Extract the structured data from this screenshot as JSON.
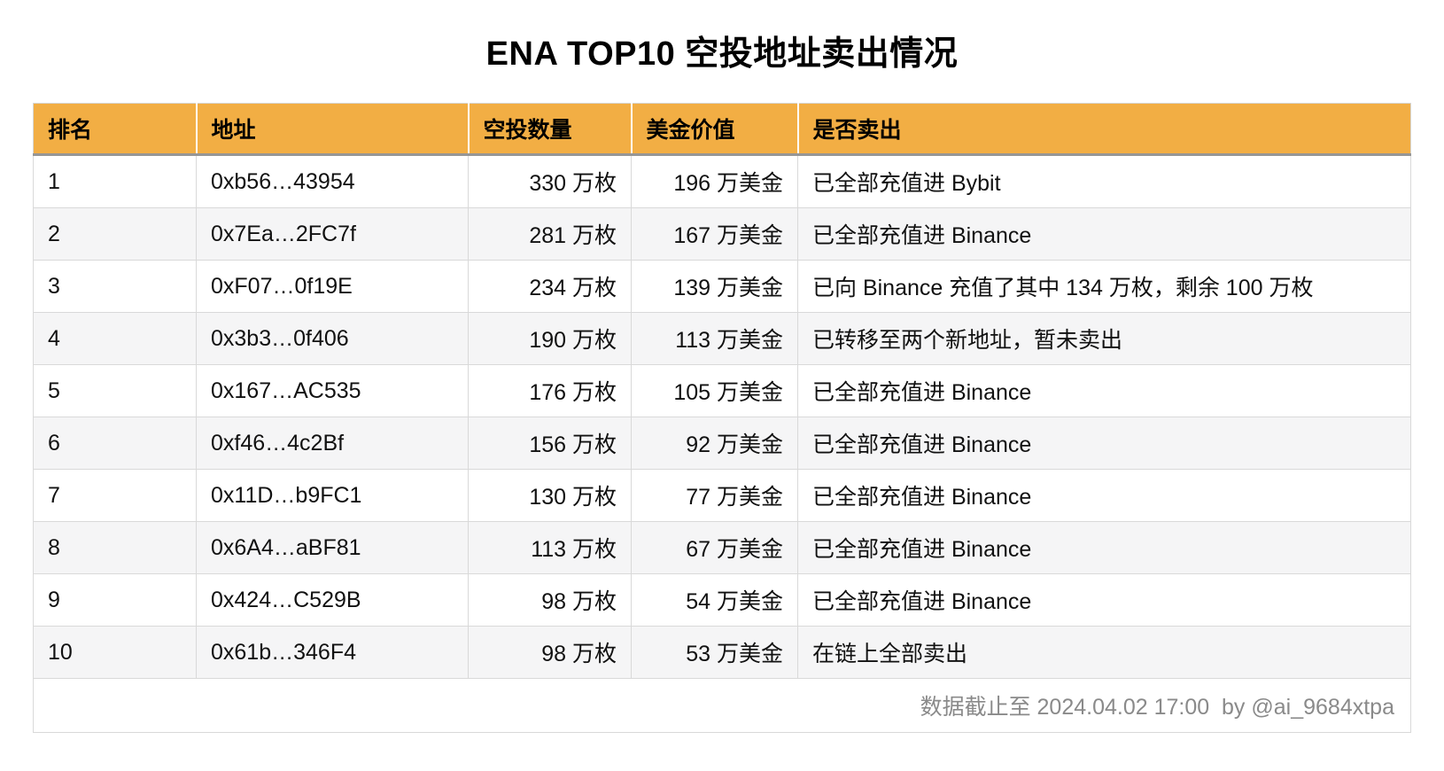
{
  "page": {
    "title": "ENA TOP10 空投地址卖出情况"
  },
  "table": {
    "columns": [
      {
        "key": "rank",
        "label": "排名"
      },
      {
        "key": "address",
        "label": "地址"
      },
      {
        "key": "amount",
        "label": "空投数量"
      },
      {
        "key": "value",
        "label": "美金价值"
      },
      {
        "key": "status",
        "label": "是否卖出"
      }
    ],
    "rows": [
      {
        "rank": "1",
        "address": "0xb56…43954",
        "amount": "330 万枚",
        "value": "196 万美金",
        "status": "已全部充值进 Bybit"
      },
      {
        "rank": "2",
        "address": "0x7Ea…2FC7f",
        "amount": "281 万枚",
        "value": "167 万美金",
        "status": "已全部充值进 Binance"
      },
      {
        "rank": "3",
        "address": "0xF07…0f19E",
        "amount": "234 万枚",
        "value": "139 万美金",
        "status": "已向 Binance 充值了其中 134 万枚，剩余 100 万枚"
      },
      {
        "rank": "4",
        "address": "0x3b3…0f406",
        "amount": "190 万枚",
        "value": "113 万美金",
        "status": "已转移至两个新地址，暂未卖出"
      },
      {
        "rank": "5",
        "address": "0x167…AC535",
        "amount": "176 万枚",
        "value": "105 万美金",
        "status": "已全部充值进 Binance"
      },
      {
        "rank": "6",
        "address": "0xf46…4c2Bf",
        "amount": "156 万枚",
        "value": "92 万美金",
        "status": "已全部充值进 Binance"
      },
      {
        "rank": "7",
        "address": "0x11D…b9FC1",
        "amount": "130 万枚",
        "value": "77 万美金",
        "status": "已全部充值进 Binance"
      },
      {
        "rank": "8",
        "address": "0x6A4…aBF81",
        "amount": "113 万枚",
        "value": "67 万美金",
        "status": "已全部充值进 Binance"
      },
      {
        "rank": "9",
        "address": "0x424…C529B",
        "amount": "98 万枚",
        "value": "54 万美金",
        "status": "已全部充值进 Binance"
      },
      {
        "rank": "10",
        "address": "0x61b…346F4",
        "amount": "98 万枚",
        "value": "53 万美金",
        "status": "在链上全部卖出"
      }
    ]
  },
  "footer": {
    "note": "数据截止至 2024.04.02 17:00  by @ai_9684xtpa"
  },
  "colors": {
    "header_bg": "#F2AE44",
    "row_alt_bg": "#F5F5F6",
    "border": "#D9D9D9",
    "header_divider": "#969696",
    "footer_text": "#8A8A8A"
  },
  "chart_data": {
    "type": "table",
    "title": "ENA TOP10 空投地址卖出情况",
    "columns": [
      "排名",
      "地址",
      "空投数量",
      "美金价值",
      "是否卖出"
    ],
    "rows": [
      [
        "1",
        "0xb56…43954",
        "330 万枚",
        "196 万美金",
        "已全部充值进 Bybit"
      ],
      [
        "2",
        "0x7Ea…2FC7f",
        "281 万枚",
        "167 万美金",
        "已全部充值进 Binance"
      ],
      [
        "3",
        "0xF07…0f19E",
        "234 万枚",
        "139 万美金",
        "已向 Binance 充值了其中 134 万枚，剩余 100 万枚"
      ],
      [
        "4",
        "0x3b3…0f406",
        "190 万枚",
        "113 万美金",
        "已转移至两个新地址，暂未卖出"
      ],
      [
        "5",
        "0x167…AC535",
        "176 万枚",
        "105 万美金",
        "已全部充值进 Binance"
      ],
      [
        "6",
        "0xf46…4c2Bf",
        "156 万枚",
        "92 万美金",
        "已全部充值进 Binance"
      ],
      [
        "7",
        "0x11D…b9FC1",
        "130 万枚",
        "77 万美金",
        "已全部充值进 Binance"
      ],
      [
        "8",
        "0x6A4…aBF81",
        "113 万枚",
        "67 万美金",
        "已全部充值进 Binance"
      ],
      [
        "9",
        "0x424…C529B",
        "98 万枚",
        "54 万美金",
        "已全部充值进 Binance"
      ],
      [
        "10",
        "0x61b…346F4",
        "98 万枚",
        "53 万美金",
        "在链上全部卖出"
      ]
    ],
    "airdrop_amount_wan": [
      330,
      281,
      234,
      190,
      176,
      156,
      130,
      113,
      98,
      98
    ],
    "usd_value_wan": [
      196,
      167,
      139,
      113,
      105,
      92,
      77,
      67,
      54,
      53
    ],
    "note": "数据截止至 2024.04.02 17:00  by @ai_9684xtpa"
  }
}
